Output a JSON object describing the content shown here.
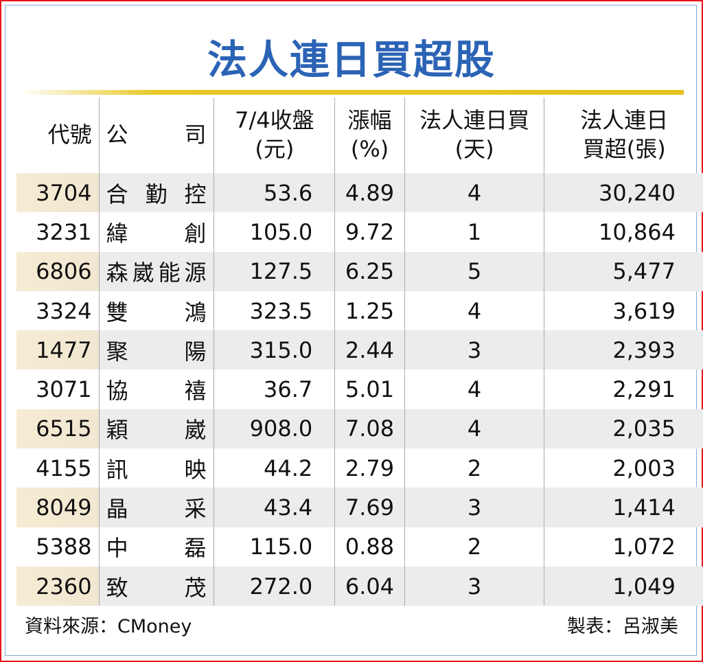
{
  "title": "法人連日買超股",
  "headers": {
    "code": "代號",
    "company": "公　　司",
    "price": "7/4收盤\n(元)",
    "change": "漲幅\n(%)",
    "days": "法人連日買\n(天)",
    "net": "法人連日\n買超(張)"
  },
  "rows": [
    [
      "3704",
      "合勤控",
      "53.6",
      "4.89",
      "4",
      "30,240"
    ],
    [
      "3231",
      "緯創",
      "105.0",
      "9.72",
      "1",
      "10,864"
    ],
    [
      "6806",
      "森崴能源",
      "127.5",
      "6.25",
      "5",
      "5,477"
    ],
    [
      "3324",
      "雙鴻",
      "323.5",
      "1.25",
      "4",
      "3,619"
    ],
    [
      "1477",
      "聚陽",
      "315.0",
      "2.44",
      "3",
      "2,393"
    ],
    [
      "3071",
      "協禧",
      "36.7",
      "5.01",
      "4",
      "2,291"
    ],
    [
      "6515",
      "穎崴",
      "908.0",
      "7.08",
      "4",
      "2,035"
    ],
    [
      "4155",
      "訊映",
      "44.2",
      "2.79",
      "2",
      "2,003"
    ],
    [
      "8049",
      "晶采",
      "43.4",
      "7.69",
      "3",
      "1,414"
    ],
    [
      "5388",
      "中磊",
      "115.0",
      "0.88",
      "2",
      "1,072"
    ],
    [
      "2360",
      "致茂",
      "272.0",
      "6.04",
      "3",
      "1,049"
    ]
  ],
  "footer": {
    "source": "資料來源：CMoney",
    "author": "製表：呂淑美"
  },
  "colors": {
    "title": "#2b63b5",
    "rule": "#e6c21c",
    "border": "#e8141b",
    "stripe": "#ececec",
    "code_stripe": "#f3ead6"
  }
}
